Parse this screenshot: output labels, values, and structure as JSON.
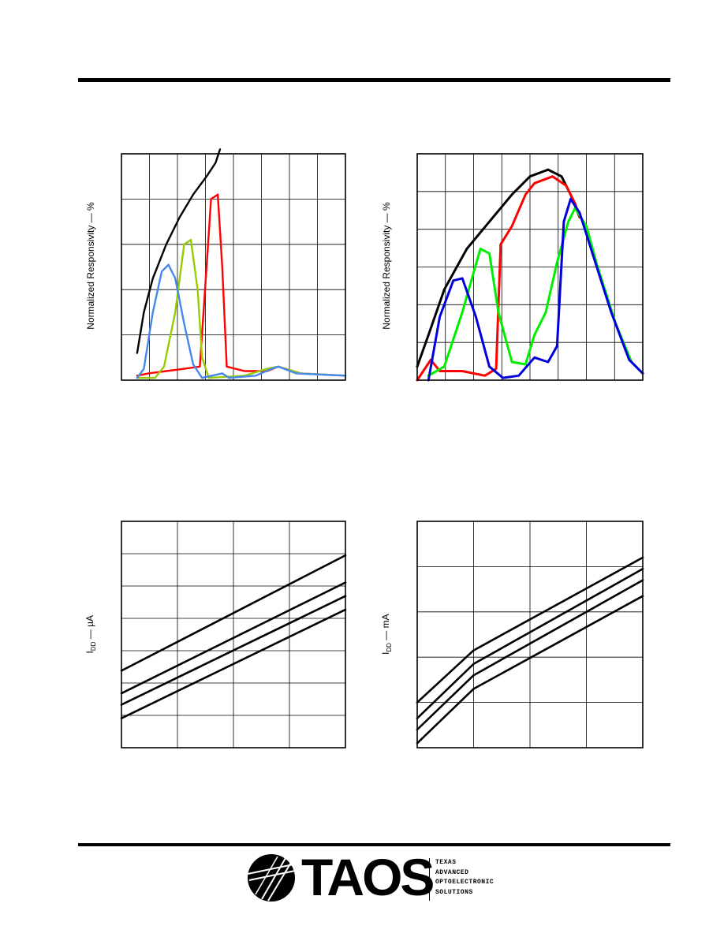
{
  "charts": {
    "spectral_left": {
      "ylabel": "Normalized Responsivity — %"
    },
    "spectral_right": {
      "ylabel": "Normalized Responsivity — %"
    },
    "idd_left": {
      "ylabel_main": "I",
      "ylabel_sub": "DD",
      "ylabel_unit": " — µA"
    },
    "idd_right": {
      "ylabel_main": "I",
      "ylabel_sub": "DD",
      "ylabel_unit": " — mA"
    }
  },
  "logo": {
    "word": "TAOS",
    "tagline": [
      "TEXAS",
      "ADVANCED",
      "OPTOELECTRONIC",
      "SOLUTIONS"
    ]
  },
  "colors": {
    "clear": "#000000",
    "red": "#ff0000",
    "green_left": "#99cc00",
    "blue_left": "#4488ee",
    "green_right": "#00ee00",
    "blue_right": "#0000dd"
  },
  "chart_data": [
    {
      "type": "line",
      "title": "",
      "xlabel": "",
      "ylabel": "Normalized Responsivity — %",
      "grid": true,
      "series": [
        {
          "color": "#000000",
          "points": [
            [
              0.07,
              0.12
            ],
            [
              0.1,
              0.3
            ],
            [
              0.14,
              0.45
            ],
            [
              0.2,
              0.6
            ],
            [
              0.26,
              0.72
            ],
            [
              0.32,
              0.82
            ],
            [
              0.38,
              0.9
            ],
            [
              0.42,
              0.96
            ],
            [
              0.44,
              1.02
            ]
          ]
        },
        {
          "color": "#ff0000",
          "points": [
            [
              0.07,
              0.02
            ],
            [
              0.12,
              0.03
            ],
            [
              0.2,
              0.04
            ],
            [
              0.28,
              0.05
            ],
            [
              0.35,
              0.06
            ],
            [
              0.38,
              0.5
            ],
            [
              0.4,
              0.8
            ],
            [
              0.43,
              0.82
            ],
            [
              0.45,
              0.5
            ],
            [
              0.47,
              0.06
            ],
            [
              0.55,
              0.04
            ],
            [
              0.65,
              0.04
            ],
            [
              0.7,
              0.06
            ],
            [
              0.8,
              0.03
            ],
            [
              1.0,
              0.02
            ]
          ]
        },
        {
          "color": "#99cc00",
          "points": [
            [
              0.07,
              0.01
            ],
            [
              0.15,
              0.01
            ],
            [
              0.19,
              0.06
            ],
            [
              0.24,
              0.3
            ],
            [
              0.28,
              0.6
            ],
            [
              0.31,
              0.62
            ],
            [
              0.34,
              0.4
            ],
            [
              0.36,
              0.1
            ],
            [
              0.39,
              0.01
            ],
            [
              0.55,
              0.02
            ],
            [
              0.65,
              0.05
            ],
            [
              0.7,
              0.06
            ],
            [
              0.8,
              0.03
            ],
            [
              1.0,
              0.02
            ]
          ]
        },
        {
          "color": "#4488ee",
          "points": [
            [
              0.07,
              0.01
            ],
            [
              0.1,
              0.05
            ],
            [
              0.14,
              0.3
            ],
            [
              0.18,
              0.48
            ],
            [
              0.21,
              0.51
            ],
            [
              0.24,
              0.45
            ],
            [
              0.28,
              0.25
            ],
            [
              0.32,
              0.07
            ],
            [
              0.36,
              0.01
            ],
            [
              0.45,
              0.03
            ],
            [
              0.48,
              0.01
            ],
            [
              0.6,
              0.02
            ],
            [
              0.67,
              0.05
            ],
            [
              0.7,
              0.06
            ],
            [
              0.78,
              0.03
            ],
            [
              1.0,
              0.02
            ]
          ]
        }
      ]
    },
    {
      "type": "line",
      "title": "",
      "xlabel": "",
      "ylabel": "Normalized Responsivity — %",
      "grid": true,
      "series": [
        {
          "color": "#000000",
          "points": [
            [
              0.0,
              0.06
            ],
            [
              0.05,
              0.2
            ],
            [
              0.12,
              0.4
            ],
            [
              0.22,
              0.58
            ],
            [
              0.32,
              0.7
            ],
            [
              0.42,
              0.82
            ],
            [
              0.5,
              0.9
            ],
            [
              0.58,
              0.93
            ],
            [
              0.64,
              0.9
            ],
            [
              0.68,
              0.82
            ],
            [
              0.72,
              0.72
            ]
          ]
        },
        {
          "color": "#ff0000",
          "points": [
            [
              0.0,
              0.0
            ],
            [
              0.06,
              0.09
            ],
            [
              0.1,
              0.04
            ],
            [
              0.2,
              0.04
            ],
            [
              0.3,
              0.02
            ],
            [
              0.35,
              0.05
            ],
            [
              0.37,
              0.6
            ],
            [
              0.42,
              0.68
            ],
            [
              0.48,
              0.82
            ],
            [
              0.52,
              0.87
            ],
            [
              0.6,
              0.9
            ],
            [
              0.66,
              0.86
            ],
            [
              0.7,
              0.78
            ],
            [
              0.72,
              0.72
            ]
          ]
        },
        {
          "color": "#00ee00",
          "points": [
            [
              0.05,
              0.02
            ],
            [
              0.12,
              0.06
            ],
            [
              0.2,
              0.3
            ],
            [
              0.28,
              0.58
            ],
            [
              0.32,
              0.56
            ],
            [
              0.36,
              0.3
            ],
            [
              0.42,
              0.08
            ],
            [
              0.48,
              0.07
            ],
            [
              0.52,
              0.2
            ],
            [
              0.57,
              0.3
            ],
            [
              0.62,
              0.52
            ],
            [
              0.67,
              0.7
            ],
            [
              0.7,
              0.76
            ],
            [
              0.75,
              0.68
            ],
            [
              0.8,
              0.5
            ],
            [
              0.88,
              0.25
            ],
            [
              0.95,
              0.08
            ],
            [
              1.0,
              0.03
            ]
          ]
        },
        {
          "color": "#0000dd",
          "points": [
            [
              0.05,
              0.0
            ],
            [
              0.1,
              0.28
            ],
            [
              0.16,
              0.44
            ],
            [
              0.2,
              0.45
            ],
            [
              0.26,
              0.28
            ],
            [
              0.32,
              0.06
            ],
            [
              0.38,
              0.01
            ],
            [
              0.45,
              0.02
            ],
            [
              0.52,
              0.1
            ],
            [
              0.58,
              0.08
            ],
            [
              0.62,
              0.15
            ],
            [
              0.65,
              0.7
            ],
            [
              0.68,
              0.8
            ],
            [
              0.72,
              0.74
            ],
            [
              0.78,
              0.55
            ],
            [
              0.86,
              0.3
            ],
            [
              0.94,
              0.09
            ],
            [
              1.0,
              0.03
            ]
          ]
        }
      ]
    },
    {
      "type": "line",
      "title": "",
      "xlabel": "",
      "ylabel": "IDD — µA",
      "grid": true,
      "series": [
        {
          "color": "#000000",
          "points": [
            [
              0.0,
              0.34
            ],
            [
              1.0,
              0.85
            ]
          ]
        },
        {
          "color": "#000000",
          "points": [
            [
              0.0,
              0.24
            ],
            [
              1.0,
              0.73
            ]
          ]
        },
        {
          "color": "#000000",
          "points": [
            [
              0.0,
              0.19
            ],
            [
              1.0,
              0.67
            ]
          ]
        },
        {
          "color": "#000000",
          "points": [
            [
              0.0,
              0.13
            ],
            [
              1.0,
              0.61
            ]
          ]
        }
      ]
    },
    {
      "type": "line",
      "title": "",
      "xlabel": "",
      "ylabel": "IDD — mA",
      "grid": true,
      "series": [
        {
          "color": "#000000",
          "points": [
            [
              0.0,
              0.2
            ],
            [
              0.25,
              0.43
            ],
            [
              1.0,
              0.84
            ]
          ]
        },
        {
          "color": "#000000",
          "points": [
            [
              0.0,
              0.13
            ],
            [
              0.25,
              0.37
            ],
            [
              1.0,
              0.79
            ]
          ]
        },
        {
          "color": "#000000",
          "points": [
            [
              0.0,
              0.08
            ],
            [
              0.25,
              0.32
            ],
            [
              1.0,
              0.74
            ]
          ]
        },
        {
          "color": "#000000",
          "points": [
            [
              0.0,
              0.02
            ],
            [
              0.25,
              0.26
            ],
            [
              1.0,
              0.67
            ]
          ]
        }
      ]
    }
  ]
}
